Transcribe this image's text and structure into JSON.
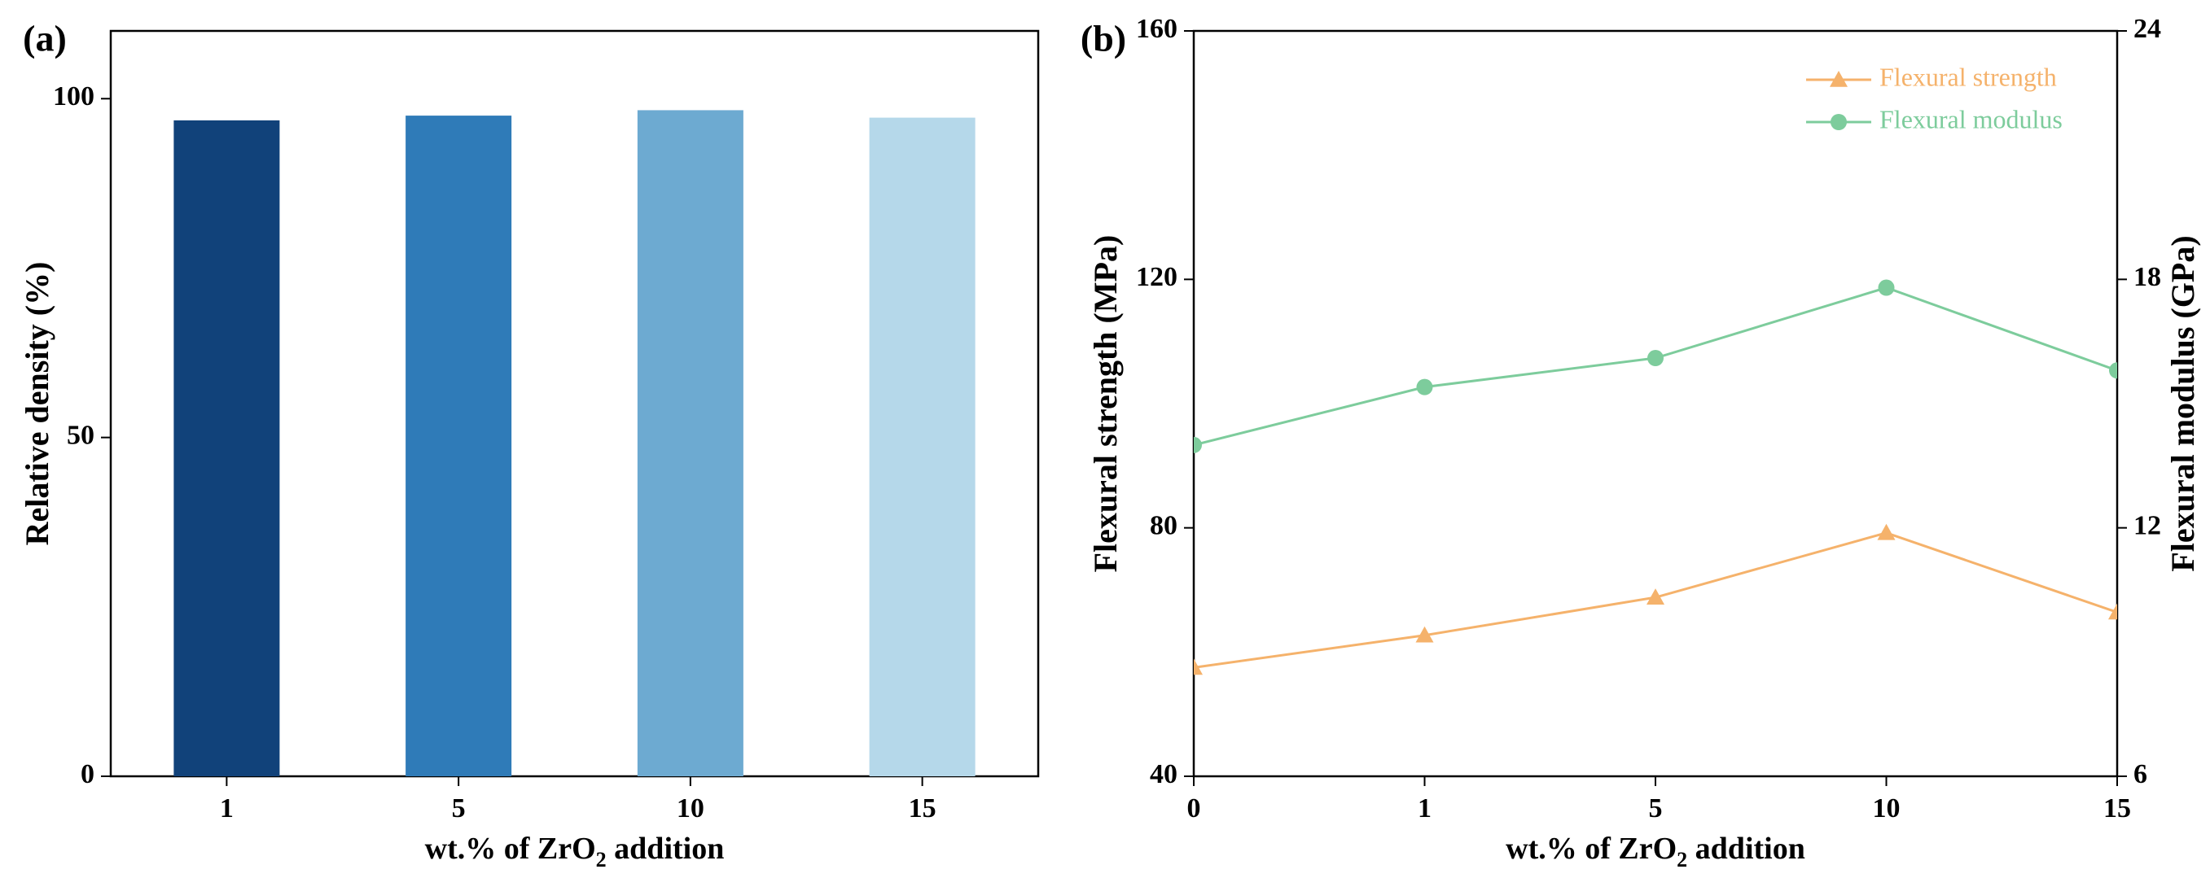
{
  "chart_data": [
    {
      "panel_label": "(a)",
      "type": "bar",
      "categories": [
        "1",
        "5",
        "10",
        "15"
      ],
      "values": [
        96.8,
        97.5,
        98.3,
        97.2
      ],
      "bar_colors": [
        "#11427a",
        "#2f7bb8",
        "#6daad1",
        "#b5d8ea"
      ],
      "xlabel_parts": [
        "wt.% of ZrO",
        "2",
        " addition"
      ],
      "ylabel": "Relative density (%)",
      "ylim": [
        0,
        110
      ],
      "yticks": [
        "0",
        "50",
        "100"
      ],
      "grid": false
    },
    {
      "panel_label": "(b)",
      "type": "line",
      "categories": [
        "0",
        "1",
        "5",
        "10",
        "15"
      ],
      "xlabel_parts": [
        "wt.% of ZrO",
        "2",
        " addition"
      ],
      "ylabel_left": "Flexural strength (MPa)",
      "ylabel_right": "Flexural modulus (GPa)",
      "ylim_left": [
        40,
        160
      ],
      "yticks_left": [
        "40",
        "80",
        "120",
        "160"
      ],
      "ylim_right": [
        6,
        24
      ],
      "yticks_right": [
        "6",
        "12",
        "18",
        "24"
      ],
      "legend_position": "top-right",
      "series": [
        {
          "name": "Flexural strength",
          "axis": "left",
          "marker": "triangle",
          "color": "#f5b26b",
          "values": [
            57.5,
            62.7,
            68.8,
            79.2,
            66.4
          ]
        },
        {
          "name": "Flexural modulus",
          "axis": "right",
          "marker": "circle",
          "color": "#7dcc9c",
          "values": [
            14.0,
            15.4,
            16.1,
            17.8,
            15.8
          ]
        }
      ]
    }
  ]
}
